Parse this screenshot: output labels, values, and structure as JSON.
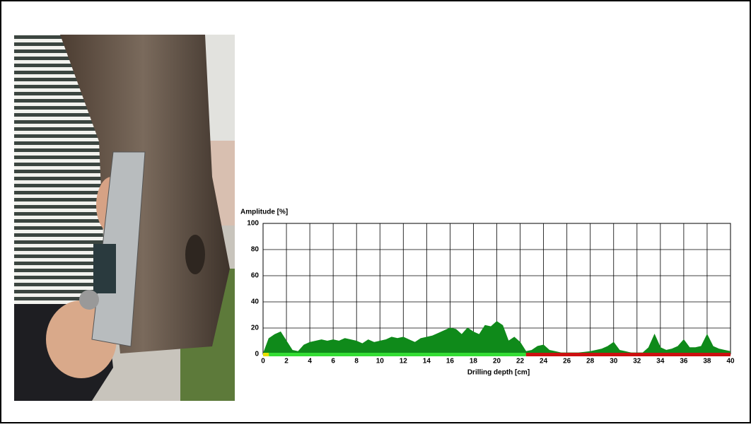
{
  "chart_data": {
    "type": "area",
    "ylabel": "Amplitude [%]",
    "xlabel": "Drilling depth [cm]",
    "xlim": [
      0,
      40
    ],
    "xticks": [
      0,
      2,
      4,
      6,
      8,
      10,
      12,
      14,
      16,
      18,
      20,
      22,
      24,
      26,
      28,
      30,
      32,
      34,
      36,
      38,
      40
    ],
    "ylim": [
      0,
      100
    ],
    "yticks": [
      0,
      20,
      40,
      60,
      80,
      100
    ],
    "grid": true,
    "series": [
      {
        "color": "#0f8a1a",
        "x": [
          0,
          0.5,
          1,
          1.5,
          2,
          2.5,
          3,
          3.5,
          4,
          4.5,
          5,
          5.5,
          6,
          6.5,
          7,
          7.5,
          8,
          8.5,
          9,
          9.5,
          10,
          10.5,
          11,
          11.5,
          12,
          12.5,
          13,
          13.5,
          14,
          14.5,
          15,
          15.5,
          16,
          16.5,
          17,
          17.5,
          18,
          18.5,
          19,
          19.5,
          20,
          20.5,
          21,
          21.5,
          22,
          22.5,
          23,
          23.5,
          24,
          24.5,
          25,
          25.5,
          26,
          26.5,
          27,
          27.5,
          28,
          28.5,
          29,
          29.5,
          30,
          30.5,
          31,
          31.5,
          32,
          32.5,
          33,
          33.5,
          34,
          34.5,
          35,
          35.5,
          36,
          36.5,
          37,
          37.5,
          38,
          38.5,
          39,
          39.5,
          40
        ],
        "values": [
          0,
          12,
          15,
          17,
          10,
          3,
          2,
          7,
          9,
          10,
          11,
          10,
          11,
          10,
          12,
          11,
          10,
          8,
          11,
          9,
          10,
          11,
          13,
          12,
          13,
          11,
          9,
          12,
          13,
          14,
          16,
          18,
          20,
          19,
          15,
          20,
          17,
          15,
          22,
          21,
          25,
          22,
          10,
          13,
          9,
          2,
          3,
          6,
          7,
          3,
          2,
          1,
          1,
          1,
          1,
          1.5,
          2,
          3,
          4,
          6,
          9,
          3,
          2,
          1,
          1,
          1,
          5,
          15,
          5,
          3,
          4,
          6,
          11,
          5,
          5,
          6,
          15,
          6,
          4,
          3,
          2
        ]
      }
    ],
    "bar_segments": [
      {
        "start": 0,
        "end": 0.5,
        "color": "#e8e000"
      },
      {
        "start": 0.5,
        "end": 22.5,
        "color": "#33dd33"
      },
      {
        "start": 22.5,
        "end": 40,
        "color": "#cc1010"
      }
    ]
  }
}
